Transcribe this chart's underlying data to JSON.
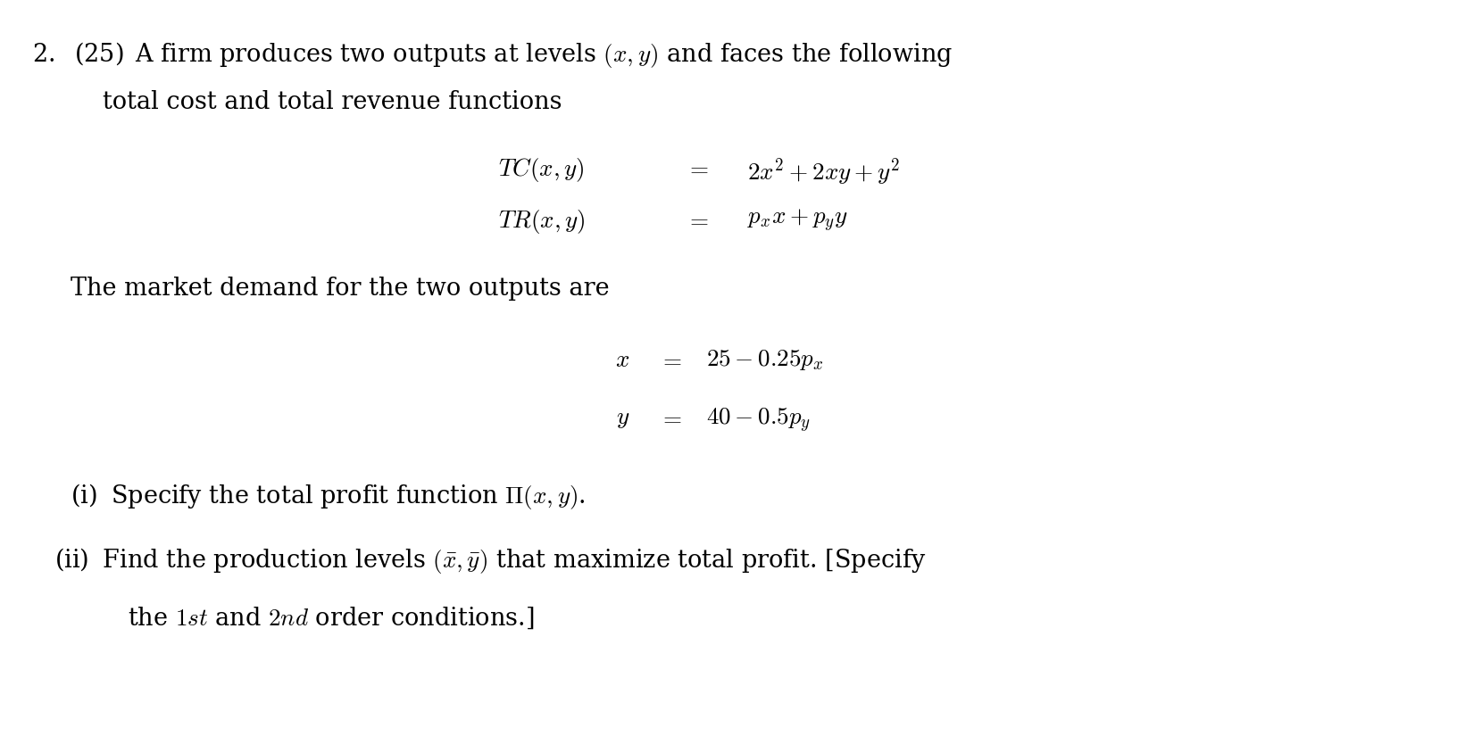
{
  "background_color": "#ffffff",
  "fig_width": 16.41,
  "fig_height": 8.25,
  "dpi": 100,
  "text_color": "#000000",
  "fontsize": 19.5,
  "fontsize_small": 19.5
}
